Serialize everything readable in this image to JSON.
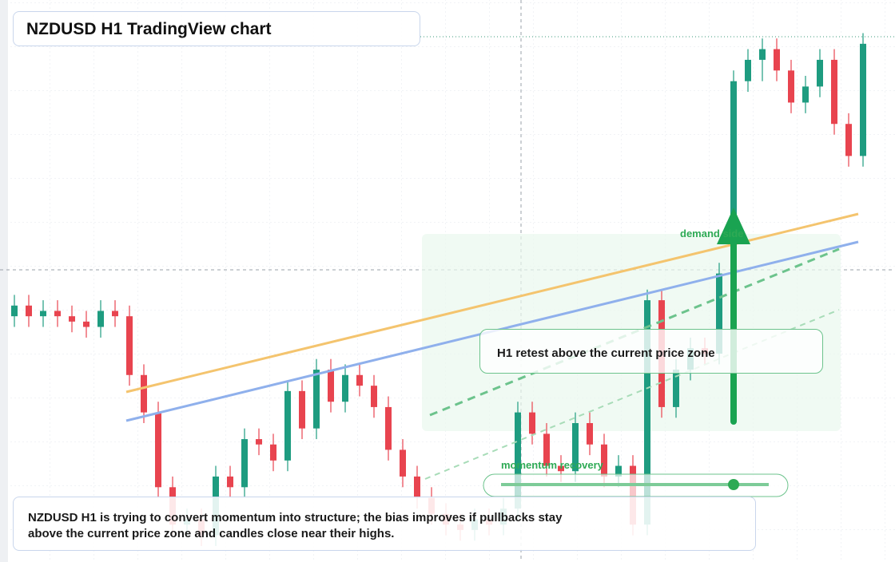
{
  "chart_data": {
    "type": "candlestick",
    "title": "NZDUSD H1 TradingView chart",
    "annotations": {
      "demand": "demand side",
      "momentum": "momentum recovery",
      "retest": "H1 retest above the current price zone",
      "note": "NZDUSD H1 is trying to convert momentum into structure; the bias improves if pullbacks stay above the current price zone and candles close near their highs."
    },
    "up_color": "#1e9c80",
    "down_color": "#e8444f",
    "ylim": [
      -4,
      100
    ],
    "open": [
      42,
      44,
      42,
      43,
      42,
      41,
      40,
      43,
      42,
      31,
      24,
      10,
      3,
      4,
      1,
      12,
      10,
      19,
      18,
      15,
      28,
      21,
      32,
      26,
      31,
      29,
      25,
      17,
      12,
      8,
      5,
      3,
      2,
      4,
      3,
      6,
      24,
      20,
      14,
      13,
      22,
      18,
      12,
      14,
      3,
      45,
      25,
      32,
      36,
      35,
      50,
      86,
      90,
      92,
      88,
      82,
      85,
      90,
      78,
      72
    ],
    "high": [
      46,
      46,
      45,
      45,
      44,
      43,
      45,
      45,
      44,
      33,
      26,
      12,
      6,
      6,
      14,
      14,
      21,
      21,
      20,
      30,
      30,
      34,
      34,
      33,
      33,
      31,
      27,
      19,
      14,
      10,
      7,
      5,
      6,
      6,
      8,
      26,
      26,
      22,
      16,
      24,
      24,
      20,
      16,
      16,
      47,
      47,
      34,
      38,
      38,
      52,
      88,
      92,
      94,
      94,
      90,
      87,
      92,
      92,
      80,
      95
    ],
    "low": [
      40,
      40,
      40,
      40,
      39,
      38,
      38,
      40,
      29,
      22,
      8,
      1,
      1,
      -1,
      -1,
      8,
      8,
      16,
      13,
      13,
      19,
      19,
      24,
      24,
      27,
      23,
      15,
      10,
      6,
      3,
      1,
      0,
      0,
      1,
      1,
      4,
      18,
      12,
      11,
      11,
      16,
      10,
      10,
      1,
      1,
      23,
      23,
      30,
      33,
      33,
      48,
      84,
      86,
      86,
      80,
      80,
      83,
      76,
      70,
      70
    ],
    "close": [
      44,
      42,
      43,
      42,
      41,
      40,
      43,
      42,
      31,
      24,
      10,
      3,
      4,
      1,
      12,
      10,
      19,
      18,
      15,
      28,
      21,
      32,
      26,
      31,
      29,
      25,
      17,
      12,
      8,
      5,
      3,
      2,
      4,
      3,
      6,
      24,
      20,
      14,
      13,
      22,
      18,
      12,
      14,
      3,
      45,
      25,
      32,
      36,
      35,
      50,
      86,
      90,
      92,
      88,
      82,
      85,
      90,
      78,
      72,
      93
    ]
  }
}
